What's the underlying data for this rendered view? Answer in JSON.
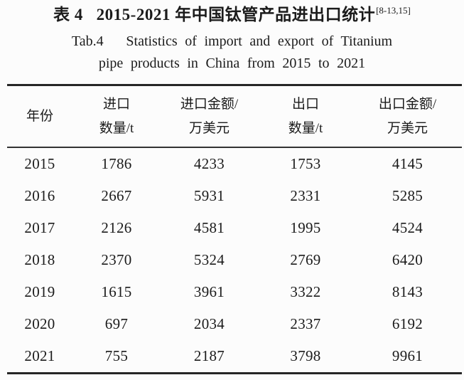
{
  "title": {
    "zh": "表 4   2015-2021 年中国钛管产品进出口统计",
    "citation": "[8-13,15]",
    "en_line1": "Tab.4   Statistics of import and export of Titanium",
    "en_line2": "pipe products in China from 2015 to 2021"
  },
  "table": {
    "headers": [
      {
        "line1": "年份",
        "line2": ""
      },
      {
        "line1": "进口",
        "line2": "数量/t"
      },
      {
        "line1": "进口金额/",
        "line2": "万美元"
      },
      {
        "line1": "出口",
        "line2": "数量/t"
      },
      {
        "line1": "出口金额/",
        "line2": "万美元"
      }
    ],
    "rows": [
      [
        "2015",
        "1786",
        "4233",
        "1753",
        "4145"
      ],
      [
        "2016",
        "2667",
        "5931",
        "2331",
        "5285"
      ],
      [
        "2017",
        "2126",
        "4581",
        "1995",
        "4524"
      ],
      [
        "2018",
        "2370",
        "5324",
        "2769",
        "6420"
      ],
      [
        "2019",
        "1615",
        "3961",
        "3322",
        "8143"
      ],
      [
        "2020",
        "697",
        "2034",
        "2337",
        "6192"
      ],
      [
        "2021",
        "755",
        "2187",
        "3798",
        "9961"
      ]
    ]
  },
  "chart_data": {
    "type": "table",
    "title": "表 4 2015-2021 年中国钛管产品进出口统计 / Tab.4 Statistics of import and export of Titanium pipe products in China from 2015 to 2021",
    "columns": [
      "年份",
      "进口数量/t",
      "进口金额/万美元",
      "出口数量/t",
      "出口金额/万美元"
    ],
    "rows": [
      [
        2015,
        1786,
        4233,
        1753,
        4145
      ],
      [
        2016,
        2667,
        5931,
        2331,
        5285
      ],
      [
        2017,
        2126,
        4581,
        1995,
        4524
      ],
      [
        2018,
        2370,
        5324,
        2769,
        6420
      ],
      [
        2019,
        1615,
        3961,
        3322,
        8143
      ],
      [
        2020,
        697,
        2034,
        2337,
        6192
      ],
      [
        2021,
        755,
        2187,
        3798,
        9961
      ]
    ]
  },
  "colors": {
    "background": "#fcfcfc",
    "text": "#1b1b1b",
    "rule": "#262626"
  }
}
